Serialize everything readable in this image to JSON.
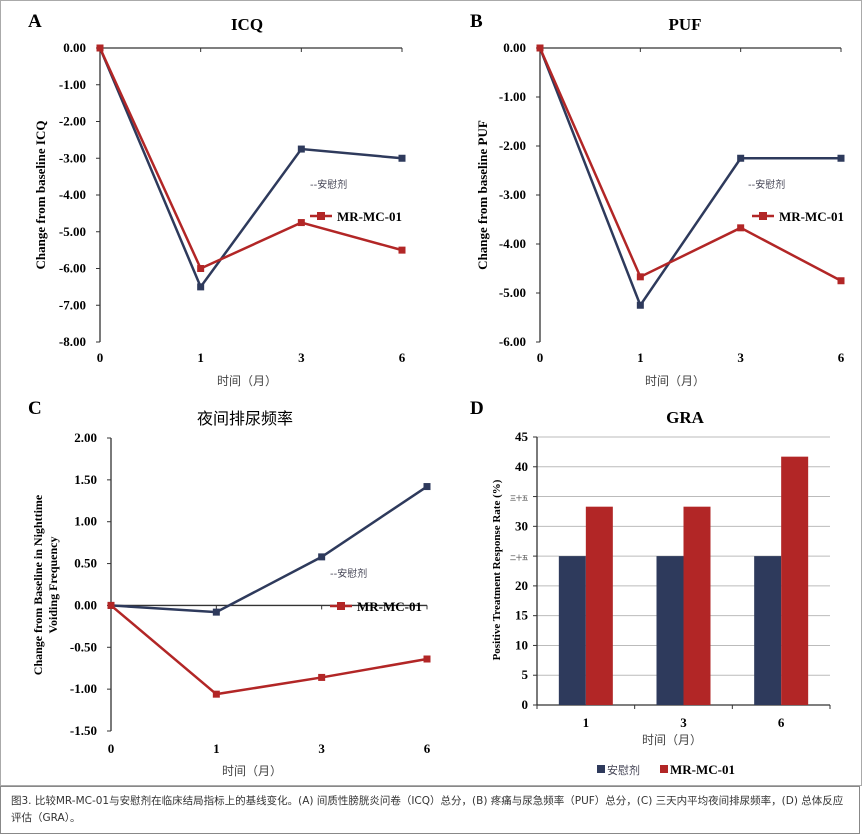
{
  "figure_caption": "图3. 比较MR-MC-01与安慰剂在临床结局指标上的基线变化。(A) 间质性膀胱炎问卷（ICQ）总分，(B) 疼痛与尿急频率（PUF）总分，(C) 三天内平均夜间排尿频率，(D) 总体反应评估（GRA）。",
  "colors": {
    "placebo": "#2e3a5c",
    "mr_mc_01": "#b22626"
  },
  "chart_data": [
    {
      "panel": "A",
      "type": "line",
      "title": "ICQ",
      "xlabel": "时间（月）",
      "ylabel": "Change from baseline ICQ",
      "categories": [
        "0",
        "1",
        "3",
        "6"
      ],
      "ylim": [
        -8,
        0
      ],
      "yticks": [
        "0.00",
        "-1.00",
        "-2.00",
        "-3.00",
        "-4.00",
        "-5.00",
        "-6.00",
        "-7.00",
        "-8.00"
      ],
      "grid": false,
      "legend": "right-middle",
      "series": [
        {
          "name": "--安慰剂",
          "values": [
            0,
            -6.5,
            -2.75,
            -3.0
          ]
        },
        {
          "name": "MR-MC-01",
          "values": [
            0,
            -6.0,
            -4.75,
            -5.5
          ]
        }
      ]
    },
    {
      "panel": "B",
      "type": "line",
      "title": "PUF",
      "xlabel": "时间（月）",
      "ylabel": "Change from baseline PUF",
      "categories": [
        "0",
        "1",
        "3",
        "6"
      ],
      "ylim": [
        -6,
        0
      ],
      "yticks": [
        "0.00",
        "-1.00",
        "-2.00",
        "-3.00",
        "-4.00",
        "-5.00",
        "-6.00"
      ],
      "grid": false,
      "legend": "right-middle",
      "series": [
        {
          "name": "--安慰剂",
          "values": [
            0,
            -5.25,
            -2.25,
            -2.25
          ]
        },
        {
          "name": "MR-MC-01",
          "values": [
            0,
            -4.67,
            -3.67,
            -4.75
          ]
        }
      ]
    },
    {
      "panel": "C",
      "type": "line",
      "title": "夜间排尿频率",
      "xlabel": "时间（月）",
      "ylabel": "Change from Baseline in Nighttime Voiding Frequency",
      "categories": [
        "0",
        "1",
        "3",
        "6"
      ],
      "ylim": [
        -1.5,
        2.0
      ],
      "yticks": [
        "2.00",
        "1.50",
        "1.00",
        "0.50",
        "0.00",
        "-0.50",
        "-1.00",
        "-1.50"
      ],
      "grid": false,
      "legend": "right-middle",
      "series": [
        {
          "name": "--安慰剂",
          "values": [
            0,
            -0.08,
            0.58,
            1.42
          ]
        },
        {
          "name": "MR-MC-01",
          "values": [
            0,
            -1.06,
            -0.86,
            -0.64
          ]
        }
      ]
    },
    {
      "panel": "D",
      "type": "bar",
      "title": "GRA",
      "xlabel": "时间（月）",
      "ylabel": "Positive Treatment Response Rate (%)",
      "categories": [
        "1",
        "3",
        "6"
      ],
      "ylim": [
        0,
        45
      ],
      "yticks": [
        "45",
        "40",
        "三十五",
        "30",
        "二十五",
        "20",
        "15",
        "10",
        "5",
        "0"
      ],
      "grid": true,
      "legend": "bottom",
      "series": [
        {
          "name": "安慰剂",
          "values": [
            25,
            25,
            25
          ]
        },
        {
          "name": "MR-MC-01",
          "values": [
            33.3,
            33.3,
            41.7
          ]
        }
      ]
    }
  ]
}
